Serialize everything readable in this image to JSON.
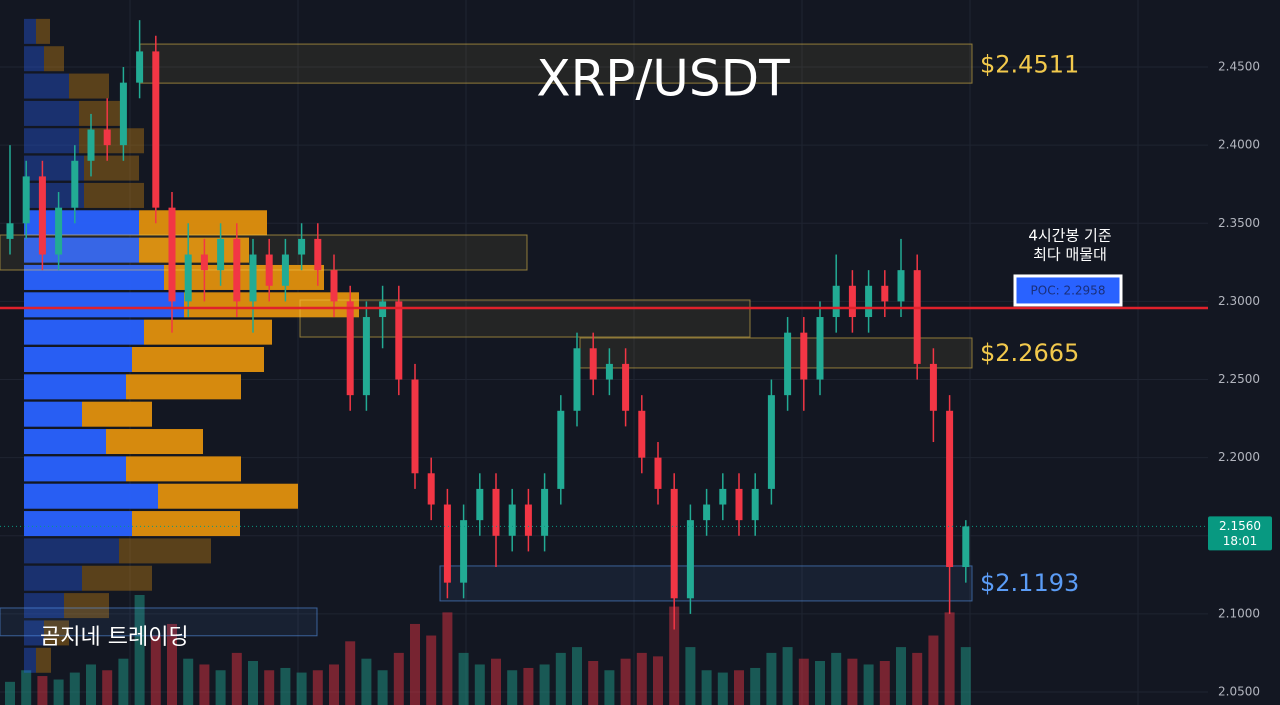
{
  "chart_data": {
    "type": "candlestick",
    "title": "XRP/USDT",
    "watermark": "곰지네 트레이딩",
    "ylim": [
      2.0417,
      2.4929
    ],
    "yticks": [
      {
        "value": 2.05,
        "label": "2.0500"
      },
      {
        "value": 2.1,
        "label": "2.1000"
      },
      {
        "value": 2.15,
        "label": "2.1500"
      },
      {
        "value": 2.2,
        "label": "2.2000"
      },
      {
        "value": 2.25,
        "label": "2.2500"
      },
      {
        "value": 2.3,
        "label": "2.3000"
      },
      {
        "value": 2.35,
        "label": "2.3500"
      },
      {
        "value": 2.4,
        "label": "2.4000"
      },
      {
        "value": 2.45,
        "label": "2.4500"
      }
    ],
    "grid": true,
    "up_color": "#22ab94",
    "down_color": "#f23645",
    "open": [
      2.34,
      2.35,
      2.38,
      2.33,
      2.36,
      2.39,
      2.41,
      2.4,
      2.44,
      2.46,
      2.36,
      2.3,
      2.33,
      2.32,
      2.34,
      2.3,
      2.33,
      2.31,
      2.33,
      2.34,
      2.32,
      2.3,
      2.24,
      2.29,
      2.3,
      2.25,
      2.19,
      2.17,
      2.12,
      2.16,
      2.18,
      2.15,
      2.17,
      2.15,
      2.18,
      2.23,
      2.27,
      2.25,
      2.26,
      2.23,
      2.2,
      2.18,
      2.11,
      2.16,
      2.17,
      2.18,
      2.16,
      2.18,
      2.24,
      2.28,
      2.25,
      2.29,
      2.31,
      2.29,
      2.31,
      2.3,
      2.32,
      2.26,
      2.23,
      2.13
    ],
    "high": [
      2.4,
      2.39,
      2.39,
      2.37,
      2.4,
      2.42,
      2.43,
      2.45,
      2.48,
      2.47,
      2.37,
      2.35,
      2.34,
      2.35,
      2.35,
      2.34,
      2.34,
      2.34,
      2.35,
      2.35,
      2.33,
      2.31,
      2.3,
      2.31,
      2.31,
      2.26,
      2.2,
      2.18,
      2.17,
      2.19,
      2.19,
      2.18,
      2.18,
      2.19,
      2.24,
      2.28,
      2.28,
      2.27,
      2.27,
      2.24,
      2.21,
      2.19,
      2.17,
      2.18,
      2.19,
      2.19,
      2.19,
      2.25,
      2.29,
      2.29,
      2.3,
      2.33,
      2.32,
      2.32,
      2.32,
      2.34,
      2.33,
      2.27,
      2.24,
      2.16
    ],
    "low": [
      2.33,
      2.34,
      2.32,
      2.32,
      2.35,
      2.38,
      2.39,
      2.39,
      2.43,
      2.35,
      2.28,
      2.29,
      2.3,
      2.31,
      2.29,
      2.28,
      2.3,
      2.3,
      2.32,
      2.31,
      2.29,
      2.23,
      2.23,
      2.27,
      2.24,
      2.18,
      2.16,
      2.11,
      2.11,
      2.15,
      2.13,
      2.14,
      2.14,
      2.14,
      2.17,
      2.22,
      2.24,
      2.24,
      2.22,
      2.19,
      2.17,
      2.09,
      2.1,
      2.15,
      2.16,
      2.15,
      2.15,
      2.17,
      2.23,
      2.23,
      2.24,
      2.28,
      2.28,
      2.28,
      2.29,
      2.29,
      2.25,
      2.21,
      2.1,
      2.12
    ],
    "close": [
      2.35,
      2.38,
      2.33,
      2.36,
      2.39,
      2.41,
      2.4,
      2.44,
      2.46,
      2.36,
      2.3,
      2.33,
      2.32,
      2.34,
      2.3,
      2.33,
      2.31,
      2.33,
      2.34,
      2.32,
      2.3,
      2.24,
      2.29,
      2.3,
      2.25,
      2.19,
      2.17,
      2.12,
      2.16,
      2.18,
      2.15,
      2.17,
      2.15,
      2.18,
      2.23,
      2.27,
      2.25,
      2.26,
      2.23,
      2.2,
      2.18,
      2.11,
      2.16,
      2.17,
      2.18,
      2.16,
      2.18,
      2.24,
      2.28,
      2.25,
      2.29,
      2.31,
      2.29,
      2.31,
      2.3,
      2.32,
      2.26,
      2.23,
      2.13,
      2.156
    ],
    "volume": [
      20,
      30,
      25,
      22,
      28,
      35,
      30,
      40,
      95,
      60,
      70,
      40,
      35,
      30,
      45,
      38,
      30,
      32,
      28,
      30,
      35,
      55,
      40,
      30,
      45,
      70,
      60,
      80,
      45,
      35,
      40,
      30,
      32,
      35,
      45,
      50,
      38,
      30,
      40,
      45,
      42,
      85,
      50,
      30,
      28,
      30,
      32,
      45,
      50,
      40,
      38,
      45,
      40,
      35,
      38,
      50,
      45,
      60,
      80,
      50
    ],
    "volume_profile": {
      "levels": [
        2.4725,
        2.455,
        2.4375,
        2.42,
        2.4025,
        2.385,
        2.3675,
        2.35,
        2.3325,
        2.315,
        2.2975,
        2.28,
        2.2625,
        2.245,
        2.2275,
        2.21,
        2.1925,
        2.175,
        2.1575,
        2.14,
        2.1225,
        2.105,
        2.0875,
        2.07
      ],
      "buy": [
        12,
        20,
        45,
        55,
        55,
        60,
        60,
        115,
        115,
        140,
        160,
        120,
        108,
        102,
        58,
        82,
        102,
        134,
        108,
        95,
        58,
        40,
        20,
        12
      ],
      "sell": [
        14,
        20,
        40,
        45,
        65,
        55,
        60,
        128,
        110,
        160,
        175,
        128,
        132,
        115,
        70,
        97,
        115,
        140,
        108,
        92,
        70,
        45,
        25,
        15
      ],
      "buy_color": "#2962ff",
      "sell_color": "#e0900e",
      "value_area": [
        2.145,
        2.36
      ]
    },
    "zones": [
      {
        "top": 2.4647,
        "bottom": 2.4397,
        "level": 2.4511,
        "label": "$2.4511",
        "color": "#f2c94c"
      },
      {
        "top": 2.3425,
        "bottom": 2.3201,
        "color": "#f2c94c"
      },
      {
        "top": 2.3009,
        "bottom": 2.2772,
        "color": "#f2c94c"
      },
      {
        "top": 2.2766,
        "bottom": 2.2574,
        "level": 2.2665,
        "label": "$2.2665",
        "color": "#f2c94c"
      },
      {
        "top": 2.1307,
        "bottom": 2.1083,
        "level": 2.1193,
        "label": "$2.1193",
        "color": "#5b9cf6"
      },
      {
        "top": 2.1038,
        "bottom": 2.086,
        "color": "#5b9cf6"
      }
    ],
    "poc": {
      "value": 2.2958,
      "label": "POC: 2.2958",
      "note": [
        "4시간봉 기준",
        "최다 매물대"
      ],
      "color": "#e0212b"
    },
    "last_price": {
      "value": 2.156,
      "label": "2.1560",
      "time": "18:01",
      "color": "#089981"
    }
  }
}
